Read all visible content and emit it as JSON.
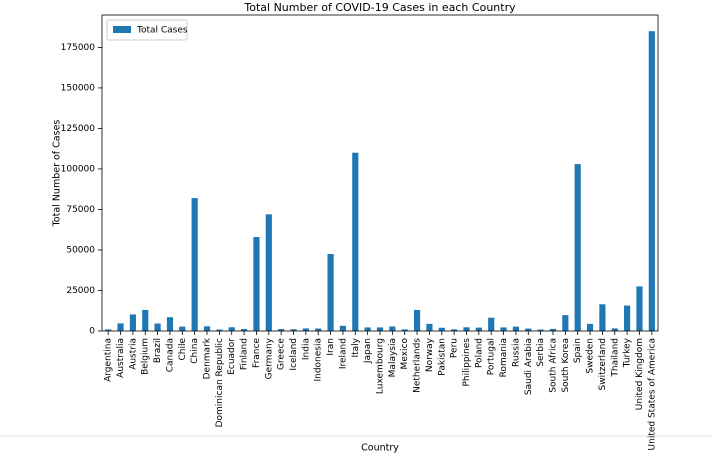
{
  "chart_data": {
    "type": "bar",
    "title": "Total Number of COVID-19 Cases in each Country",
    "x_label": "Country",
    "y_label": "Total Number of Cases",
    "categories": [
      "Argentina",
      "Australia",
      "Austria",
      "Belgium",
      "Brazil",
      "Canada",
      "Chile",
      "China",
      "Denmark",
      "Dominican Republic",
      "Ecuador",
      "Finland",
      "France",
      "Germany",
      "Greece",
      "Iceland",
      "India",
      "Indonesia",
      "Iran",
      "Ireland",
      "Italy",
      "Japan",
      "Luxembourg",
      "Malaysia",
      "Mexico",
      "Netherlands",
      "Norway",
      "Pakistan",
      "Peru",
      "Philippines",
      "Poland",
      "Portugal",
      "Romania",
      "Russia",
      "Saudi Arabia",
      "Serbia",
      "South Africa",
      "South Korea",
      "Spain",
      "Sweden",
      "Switzerland",
      "Thailand",
      "Turkey",
      "United Kingdom",
      "United States of America"
    ],
    "series": [
      {
        "name": "Total Cases",
        "color": "#1f77b4",
        "values": [
          1000,
          4700,
          10200,
          13000,
          4600,
          8500,
          2700,
          82000,
          2900,
          900,
          2300,
          1200,
          58000,
          72000,
          1200,
          1100,
          1600,
          1500,
          47500,
          3200,
          110000,
          2200,
          2200,
          2800,
          1000,
          13000,
          4400,
          2000,
          1000,
          2300,
          2100,
          8200,
          2200,
          2700,
          1500,
          900,
          1300,
          9800,
          103000,
          4400,
          16500,
          1600,
          15700,
          27500,
          185000
        ]
      }
    ],
    "ylim": [
      0,
      195000
    ],
    "yticks": [
      0,
      25000,
      50000,
      75000,
      100000,
      125000,
      150000,
      175000
    ],
    "legend": "upper left"
  }
}
